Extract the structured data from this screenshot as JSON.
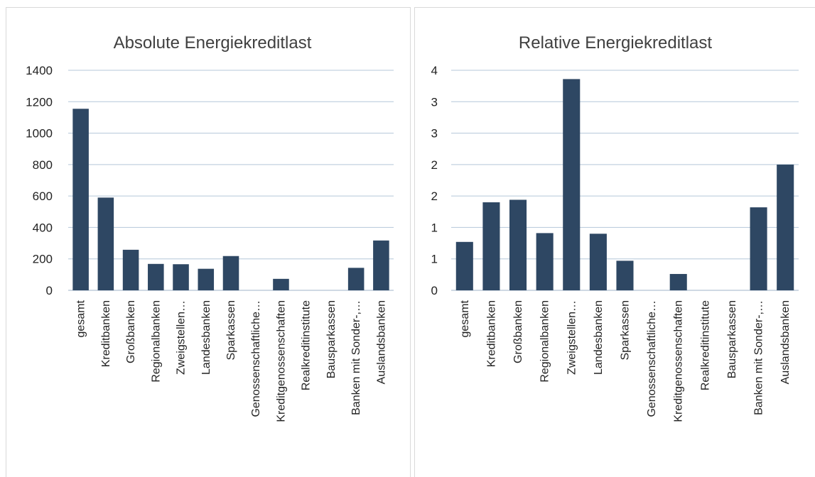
{
  "colors": {
    "bar": "#2e4763",
    "grid": "#b4c7d9",
    "text": "#222222",
    "title": "#404040"
  },
  "chart_data": [
    {
      "type": "bar",
      "title": "Absolute Energiekreditlast",
      "xlabel": "",
      "ylabel": "",
      "grid": true,
      "legend": "none",
      "ylim": [
        0,
        1400
      ],
      "yticks": [
        0,
        200,
        400,
        600,
        800,
        1000,
        1200,
        1400
      ],
      "ytick_labels": [
        "0",
        "200",
        "400",
        "600",
        "800",
        "1000",
        "1200",
        "1400"
      ],
      "categories": [
        "gesamt",
        "Kreditbanken",
        "Großbanken",
        "Regionalbanken",
        "Zweigstellen…",
        "Landesbanken",
        "Sparkassen",
        "Genossenschaftliche…",
        "Kreditgenossenschaften",
        "Realkreditinstitute",
        "Bausparkassen",
        "Banken mit Sonder-,…",
        "Auslandsbanken"
      ],
      "values": [
        1155,
        590,
        258,
        168,
        166,
        137,
        218,
        0,
        73,
        0,
        0,
        143,
        317
      ]
    },
    {
      "type": "bar",
      "title": "Relative Energiekreditlast",
      "xlabel": "",
      "ylabel": "",
      "grid": true,
      "legend": "none",
      "ylim": [
        0,
        3.5
      ],
      "yticks": [
        0,
        0.5,
        1,
        1.5,
        2,
        2.5,
        3,
        3.5
      ],
      "ytick_labels": [
        "0",
        "1",
        "1",
        "2",
        "2",
        "3",
        "3",
        "4"
      ],
      "categories": [
        "gesamt",
        "Kreditbanken",
        "Großbanken",
        "Regionalbanken",
        "Zweigstellen…",
        "Landesbanken",
        "Sparkassen",
        "Genossenschaftliche…",
        "Kreditgenossenschaften",
        "Realkreditinstitute",
        "Bausparkassen",
        "Banken mit Sonder-,…",
        "Auslandsbanken"
      ],
      "values": [
        0.77,
        1.4,
        1.44,
        0.91,
        3.36,
        0.9,
        0.47,
        0,
        0.26,
        0,
        0,
        1.32,
        2.0
      ]
    }
  ]
}
